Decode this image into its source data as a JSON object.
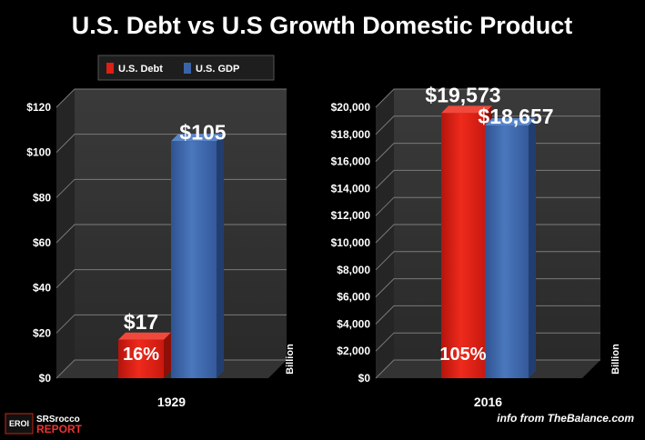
{
  "title": "U.S. Debt vs U.S Growth Domestic Product",
  "legend": [
    {
      "label": "U.S. Debt",
      "color": "#dd1f14"
    },
    {
      "label": "U.S. GDP",
      "color": "#3a64a8"
    }
  ],
  "source_note": "info from TheBalance.com",
  "logo": {
    "top": "SRSrocco",
    "bottom": "REPORT",
    "badge": "EROI"
  },
  "chart_data": [
    {
      "type": "bar",
      "categories": [
        "1929"
      ],
      "series": [
        {
          "name": "U.S. Debt",
          "values": [
            17
          ]
        },
        {
          "name": "U.S. GDP",
          "values": [
            105
          ]
        }
      ],
      "ylim": [
        0,
        120
      ],
      "yticks": [
        "$0",
        "$20",
        "$40",
        "$60",
        "$80",
        "$100",
        "$120"
      ],
      "ylabel": "Billion",
      "data_labels": {
        "debt": "$17",
        "gdp": "$105"
      },
      "debt_pct_label": "16%"
    },
    {
      "type": "bar",
      "categories": [
        "2016"
      ],
      "series": [
        {
          "name": "U.S. Debt",
          "values": [
            19573
          ]
        },
        {
          "name": "U.S. GDP",
          "values": [
            18657
          ]
        }
      ],
      "ylim": [
        0,
        20000
      ],
      "yticks": [
        "$0",
        "$2,000",
        "$4,000",
        "$6,000",
        "$8,000",
        "$10,000",
        "$12,000",
        "$14,000",
        "$16,000",
        "$18,000",
        "$20,000"
      ],
      "ylabel": "Billion",
      "data_labels": {
        "debt": "$19,573",
        "gdp": "$18,657"
      },
      "debt_pct_label": "105%"
    }
  ]
}
